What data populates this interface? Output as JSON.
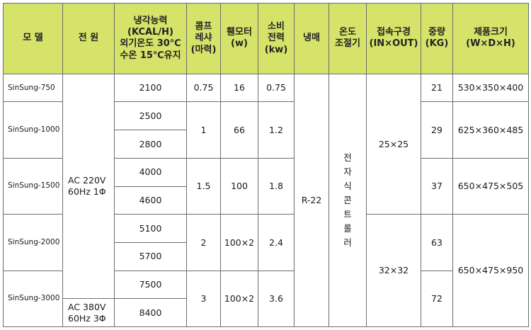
{
  "headers": {
    "model": "모 델",
    "power": "전 원",
    "cooling": [
      "냉각능력",
      "(KCAL/H)",
      "외기온도 30℃",
      "수온 15℃유지"
    ],
    "comp": [
      "콤프",
      "레샤",
      "(마력)"
    ],
    "fan": [
      "휀모터",
      "(w)"
    ],
    "consumption": [
      "소비",
      "전력",
      "(kw)"
    ],
    "refrigerant": "냉매",
    "temp_ctrl": [
      "온도",
      "조절기"
    ],
    "connection": [
      "접속구경",
      "(IN×OUT)"
    ],
    "weight": [
      "중량",
      "(KG)"
    ],
    "size": [
      "제품크기",
      "(W×D×H)"
    ]
  },
  "models": [
    "SinSung-750",
    "SinSung-1000",
    "SinSung-1500",
    "SinSung-2000",
    "SinSung-3000"
  ],
  "power": {
    "ac220": [
      "AC 220V",
      "60Hz 1Φ"
    ],
    "ac380": [
      "AC 380V",
      "60Hz 3Φ"
    ]
  },
  "cooling": [
    "2100",
    "2500",
    "2800",
    "4000",
    "4600",
    "5100",
    "5700",
    "7500",
    "8400"
  ],
  "comp": [
    "0.75",
    "1",
    "1.5",
    "2",
    "3"
  ],
  "fan": [
    "16",
    "66",
    "100",
    "100×2",
    "100×2"
  ],
  "consumption": [
    "0.75",
    "1.2",
    "1.8",
    "2.4",
    "3.6"
  ],
  "refrigerant": "R-22",
  "temp_ctrl_chars": [
    "전",
    "자",
    "식",
    "콘",
    "트",
    "롤",
    "러"
  ],
  "connection": [
    "25×25",
    "32×32"
  ],
  "weight": [
    "21",
    "29",
    "37",
    "63",
    "72"
  ],
  "size": [
    "530×350×400",
    "625×360×485",
    "650×475×505",
    "650×475×950"
  ]
}
